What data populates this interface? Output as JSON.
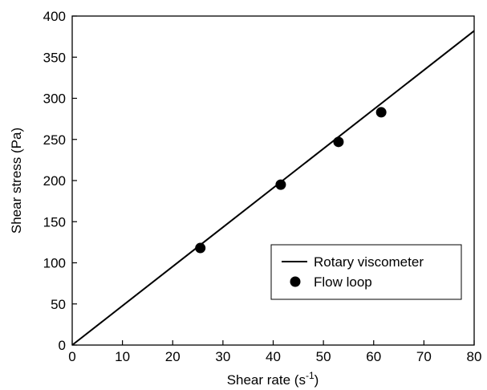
{
  "chart_data": {
    "type": "scatter",
    "xlabel": "Shear rate (s",
    "xlabel_superscript": "-1",
    "xlabel_suffix": ")",
    "ylabel": "Shear stress (Pa)",
    "xlim": [
      0,
      80
    ],
    "ylim": [
      0,
      400
    ],
    "x_ticks": [
      0,
      10,
      20,
      30,
      40,
      50,
      60,
      70,
      80
    ],
    "y_ticks": [
      0,
      50,
      100,
      150,
      200,
      250,
      300,
      350,
      400
    ],
    "grid": false,
    "legend_position": "bottom-right",
    "series": [
      {
        "name": "Rotary viscometer",
        "kind": "line",
        "x": [
          0,
          80
        ],
        "y": [
          0,
          382
        ],
        "color": "#000000"
      },
      {
        "name": "Flow loop",
        "kind": "marker",
        "x": [
          25.5,
          41.5,
          53,
          61.5
        ],
        "y": [
          118,
          195,
          247,
          283
        ],
        "color": "#000000"
      }
    ]
  }
}
